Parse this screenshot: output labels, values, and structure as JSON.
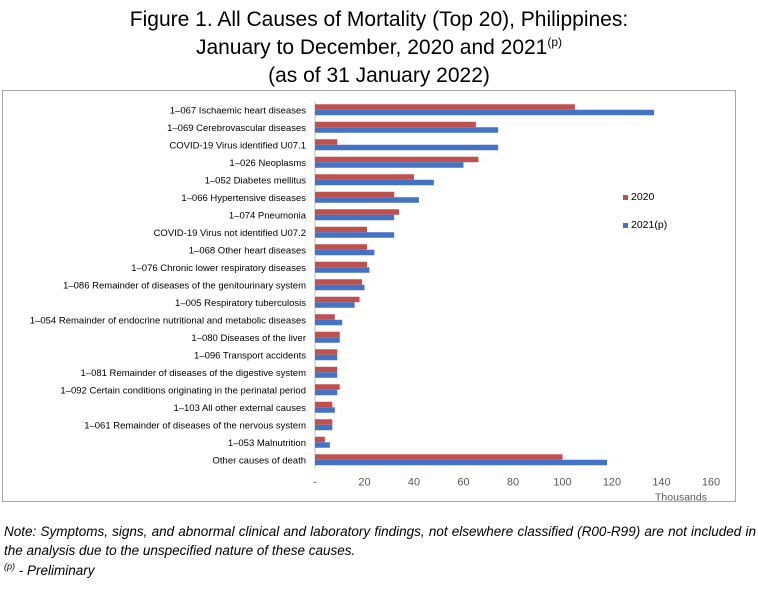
{
  "figure": {
    "title_line1": "Figure 1.  All Causes of Mortality (Top 20), Philippines:",
    "title_line2": "January to December, 2020 and 2021",
    "title_line2_sup": "(p)",
    "title_line3": "(as of 31 January 2022)"
  },
  "chart_data": {
    "type": "bar",
    "orientation": "horizontal",
    "categories": [
      "1–067 Ischaemic heart diseases",
      "1–069 Cerebrovascular diseases",
      "COVID-19 Virus identified U07.1",
      "1–026 Neoplasms",
      "1–052 Diabetes mellitus",
      "1–066 Hypertensive diseases",
      "1–074 Pneumonia",
      "COVID-19 Virus not identified U07.2",
      "1–068 Other heart diseases",
      "1–076 Chronic lower respiratory diseases",
      "1–086 Remainder of diseases of the genitourinary system",
      "1–005 Respiratory tuberculosis",
      "1–054 Remainder of endocrine nutritional and metabolic diseases",
      "1–080 Diseases of the liver",
      "1–096 Transport accidents",
      "1–081 Remainder of diseases of the digestive system",
      "1–092 Certain conditions originating in the perinatal period",
      "1–103 All other external causes",
      "1–061 Remainder of diseases of the nervous system",
      "1–053 Malnutrition",
      "Other causes of death"
    ],
    "series": [
      {
        "name": "2020",
        "color": "#c0504d",
        "values": [
          105,
          65,
          9,
          66,
          40,
          32,
          34,
          21,
          21,
          21,
          19,
          18,
          8,
          10,
          9,
          9,
          10,
          7,
          7,
          4,
          100
        ]
      },
      {
        "name": "2021(p)",
        "color": "#4472c4",
        "values": [
          137,
          74,
          74,
          60,
          48,
          42,
          32,
          32,
          24,
          22,
          20,
          16,
          11,
          10,
          9,
          9,
          9,
          8,
          7,
          6,
          118
        ]
      }
    ],
    "xlim": [
      0,
      160
    ],
    "xticks": [
      0,
      20,
      40,
      60,
      80,
      100,
      120,
      140,
      160
    ],
    "xtick_labels": [
      "-",
      "20",
      "40",
      "60",
      "80",
      "100",
      "120",
      "140",
      "160"
    ],
    "xlabel": "Thousands",
    "ylabel": "",
    "grid": false,
    "legend_position": "right"
  },
  "note": {
    "text": "Note: Symptoms, signs, and abnormal clinical and laboratory findings, not elsewhere classified (R00-R99) are not included in the analysis due to the unspecified nature of these causes.",
    "prelim_sup": "(p)",
    "prelim_text": " - Preliminary"
  }
}
